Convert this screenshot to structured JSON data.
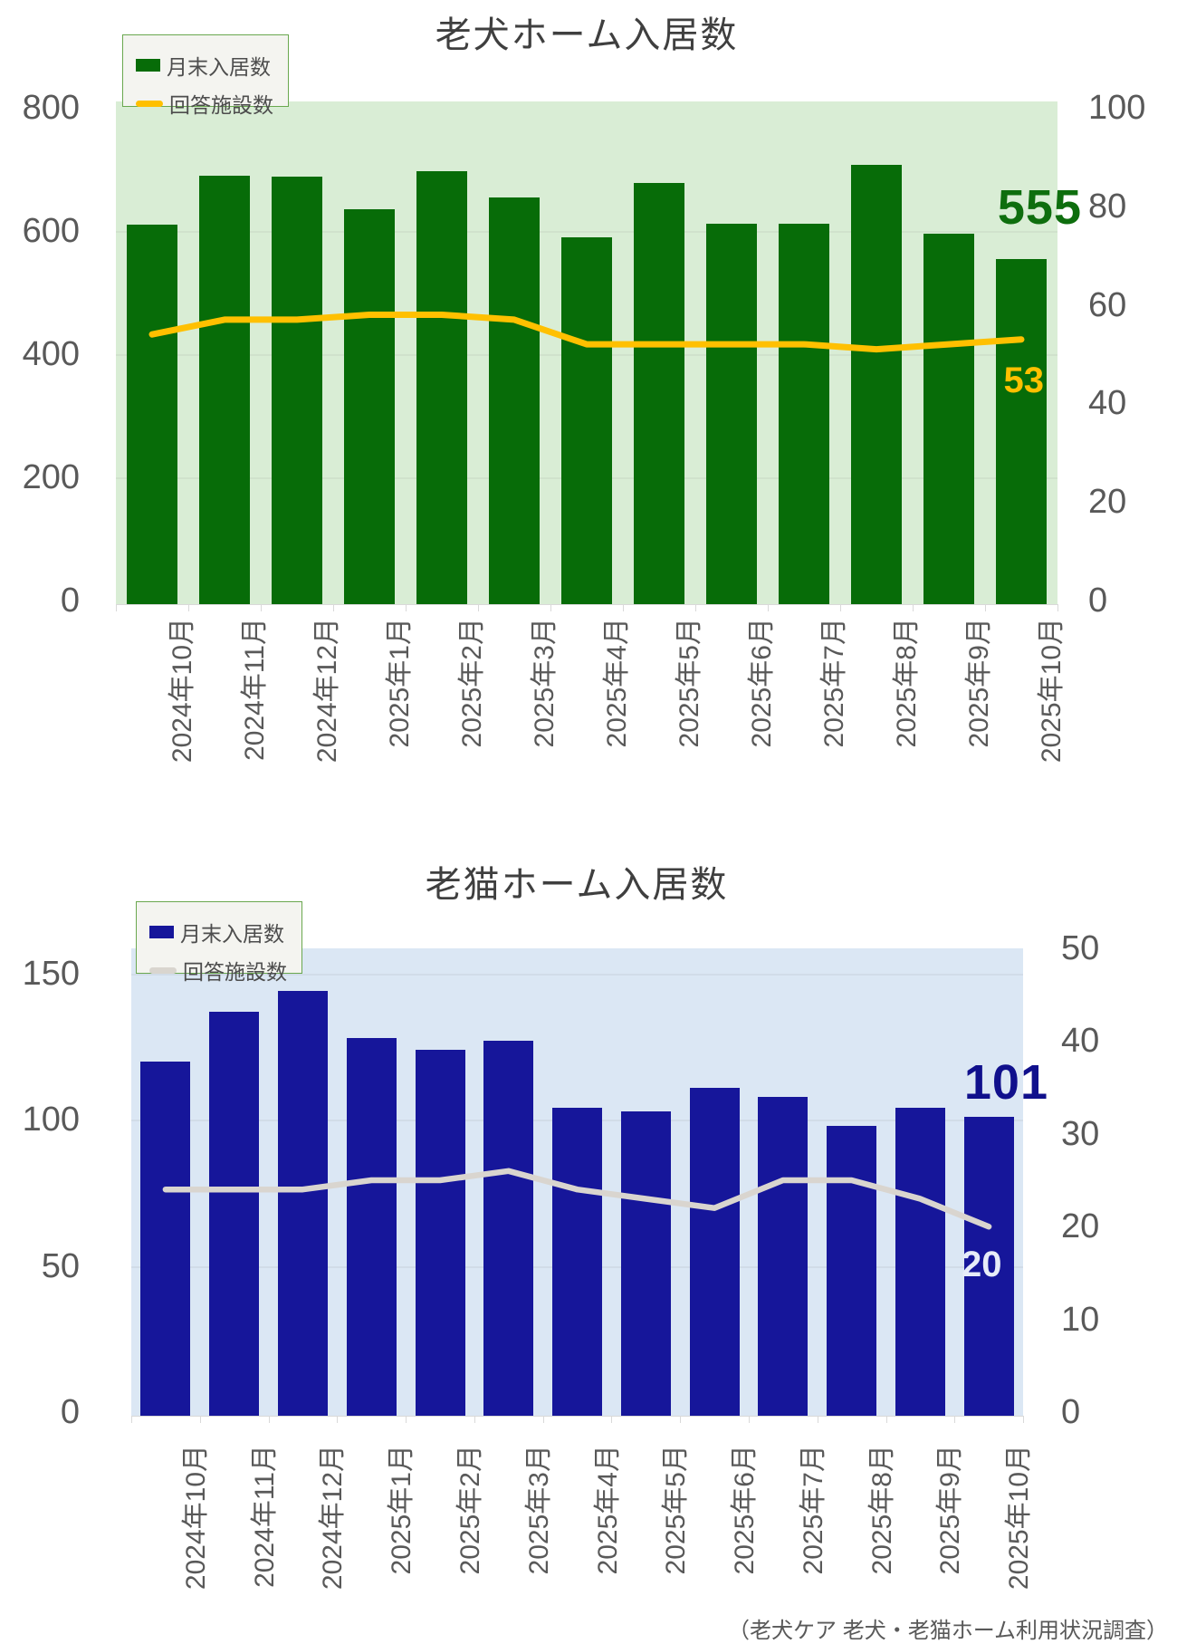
{
  "page": {
    "background": "#ffffff",
    "footer": "（老犬ケア 老犬・老猫ホーム利用状況調査）"
  },
  "chart_data": [
    {
      "type": "bar+line",
      "title": "老犬ホーム入居数",
      "plot_bg": "#d9edd5",
      "grid": true,
      "legend_position": "top-left",
      "categories": [
        "2024年10月",
        "2024年11月",
        "2024年12月",
        "2025年1月",
        "2025年2月",
        "2025年3月",
        "2025年4月",
        "2025年5月",
        "2025年6月",
        "2025年7月",
        "2025年8月",
        "2025年9月",
        "2025年10月"
      ],
      "series": [
        {
          "name": "月末入居数",
          "type": "bar",
          "axis": "left",
          "color": "#076c08",
          "values": [
            610,
            690,
            688,
            635,
            697,
            655,
            590,
            678,
            612,
            612,
            707,
            595,
            555
          ]
        },
        {
          "name": "回答施設数",
          "type": "line",
          "axis": "right",
          "color": "#ffc000",
          "values": [
            54,
            57,
            57,
            58,
            58,
            57,
            52,
            52,
            52,
            52,
            51,
            52,
            53
          ]
        }
      ],
      "left_axis": {
        "ticks": [
          800,
          600,
          400,
          200,
          0
        ],
        "range": [
          0,
          800
        ],
        "gridlines": [
          600,
          400,
          200
        ]
      },
      "right_axis": {
        "ticks": [
          100,
          80,
          60,
          40,
          20,
          0
        ],
        "range": [
          0,
          100
        ]
      },
      "bar_label": {
        "text": "555",
        "color": "#0e6e0e"
      },
      "line_label": {
        "text": "53",
        "color": "#ffc000"
      }
    },
    {
      "type": "bar+line",
      "title": "老猫ホーム入居数",
      "plot_bg": "#dbe7f4",
      "grid": true,
      "legend_position": "top-left",
      "categories": [
        "2024年10月",
        "2024年11月",
        "2024年12月",
        "2025年1月",
        "2025年2月",
        "2025年3月",
        "2025年4月",
        "2025年5月",
        "2025年6月",
        "2025年7月",
        "2025年8月",
        "2025年9月",
        "2025年10月"
      ],
      "series": [
        {
          "name": "月末入居数",
          "type": "bar",
          "axis": "left",
          "color": "#16169a",
          "values": [
            120,
            137,
            144,
            128,
            124,
            127,
            104,
            103,
            111,
            108,
            98,
            104,
            101
          ]
        },
        {
          "name": "回答施設数",
          "type": "line",
          "axis": "right",
          "color": "#d9d5cf",
          "values": [
            24,
            24,
            24,
            25,
            25,
            26,
            24,
            23,
            22,
            25,
            25,
            23,
            20
          ]
        }
      ],
      "left_axis": {
        "ticks": [
          150,
          100,
          50,
          0
        ],
        "range": [
          0,
          150
        ],
        "gridlines": [
          150,
          100,
          50
        ]
      },
      "right_axis": {
        "ticks": [
          50,
          40,
          30,
          20,
          10,
          0
        ],
        "range": [
          0,
          50
        ]
      },
      "bar_label": {
        "text": "101",
        "color": "#10108c"
      },
      "line_label": {
        "text": "20",
        "color": "#e7ecf8"
      }
    }
  ]
}
